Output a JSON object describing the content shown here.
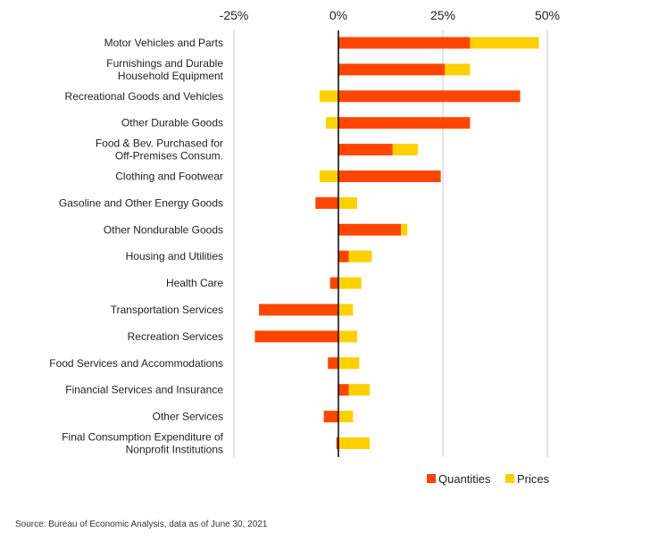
{
  "chart_data": {
    "type": "bar",
    "orientation": "horizontal",
    "stacked": true,
    "categories": [
      [
        "Motor Vehicles and Parts"
      ],
      [
        "Furnishings and Durable",
        "Household Equipment"
      ],
      [
        "Recreational Goods and Vehicles"
      ],
      [
        "Other Durable Goods"
      ],
      [
        "Food & Bev. Purchased for",
        "Off-Premises Consum."
      ],
      [
        "Clothing and Footwear"
      ],
      [
        "Gasoline and Other Energy Goods"
      ],
      [
        "Other Nondurable Goods"
      ],
      [
        "Housing and Utilities"
      ],
      [
        "Health Care"
      ],
      [
        "Transportation Services"
      ],
      [
        "Recreation Services"
      ],
      [
        "Food Services and Accommodations"
      ],
      [
        "Financial Services and Insurance"
      ],
      [
        "Other Services"
      ],
      [
        "Final Consumption Expenditure of",
        "Nonprofit Institutions"
      ]
    ],
    "series": [
      {
        "name": "Quantities",
        "color": "#ff4500",
        "values": [
          31.5,
          25.5,
          43.5,
          31.5,
          13.0,
          24.5,
          -5.5,
          15.0,
          2.5,
          -2.0,
          -19.0,
          -20.0,
          -2.5,
          2.5,
          -3.5,
          -0.5
        ]
      },
      {
        "name": "Prices",
        "color": "#ffd000",
        "values": [
          16.5,
          6.0,
          -4.5,
          -3.0,
          6.0,
          -4.5,
          4.5,
          1.5,
          5.5,
          5.5,
          3.5,
          4.5,
          5.0,
          5.0,
          3.5,
          7.5
        ]
      }
    ],
    "x_ticks": [
      "-25%",
      "0%",
      "25%",
      "50%"
    ],
    "x_tick_values": [
      -25,
      0,
      25,
      50
    ],
    "xlim": [
      -25,
      50
    ],
    "grid": true,
    "legend_position": "bottom-right"
  },
  "footer": {
    "source": "Source: Bureau of Economic Analysis, data as of June 30, 2021"
  }
}
